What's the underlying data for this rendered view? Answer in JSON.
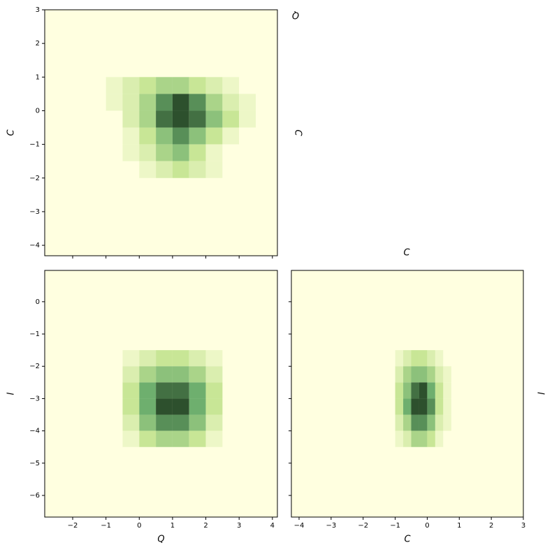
{
  "chart_data": [
    {
      "type": "hist2d",
      "xlabel": null,
      "ylabel": "C",
      "xlim": [
        -2.84,
        4.15
      ],
      "ylim": [
        -4.31,
        3
      ],
      "xticks": [
        {
          "value": -2,
          "label": "−2"
        },
        {
          "value": -1,
          "label": "−1"
        },
        0,
        1,
        2,
        3,
        4
      ],
      "yticks": [
        {
          "value": -4,
          "label": "−4"
        },
        {
          "value": -3,
          "label": "−3"
        },
        {
          "value": -2,
          "label": "−2"
        },
        {
          "value": -1,
          "label": "−1"
        },
        0,
        1,
        2,
        3
      ],
      "show_xtick_labels": false,
      "show_ytick_labels": true,
      "xbins": [
        -1,
        -0.5,
        0,
        0.5,
        1,
        1.5,
        2,
        2.5,
        3,
        3.5
      ],
      "ybins": [
        1,
        0.5,
        0,
        -0.5,
        -1,
        -1.5,
        -2
      ],
      "counts": [
        [
          1,
          2,
          3,
          4,
          4,
          3,
          2,
          1,
          0
        ],
        [
          1,
          2,
          4,
          7,
          9,
          7,
          4,
          2,
          1
        ],
        [
          0,
          2,
          4,
          8,
          9,
          8,
          5,
          3,
          1
        ],
        [
          0,
          1,
          3,
          5,
          7,
          5,
          3,
          1,
          0
        ],
        [
          0,
          1,
          2,
          4,
          5,
          3,
          1,
          0,
          0
        ],
        [
          0,
          0,
          1,
          2,
          3,
          2,
          1,
          0,
          0
        ]
      ]
    },
    {
      "type": "hist2d",
      "xlabel": "Q",
      "ylabel": "I",
      "xlim": [
        -2.84,
        4.15
      ],
      "ylim": [
        -6.67,
        0.97
      ],
      "xticks": [
        {
          "value": -2,
          "label": "−2"
        },
        {
          "value": -1,
          "label": "−1"
        },
        0,
        1,
        2,
        3,
        4
      ],
      "yticks": [
        {
          "value": -6,
          "label": "−6"
        },
        {
          "value": -5,
          "label": "−5"
        },
        {
          "value": -4,
          "label": "−4"
        },
        {
          "value": -3,
          "label": "−3"
        },
        {
          "value": -2,
          "label": "−2"
        },
        {
          "value": -1,
          "label": "−1"
        },
        0
      ],
      "show_xtick_labels": true,
      "show_ytick_labels": true,
      "xbins": [
        -0.5,
        0,
        0.5,
        1,
        1.5,
        2,
        2.5
      ],
      "ybins": [
        -1.5,
        -2,
        -2.5,
        -3,
        -3.5,
        -4,
        -4.5
      ],
      "counts": [
        [
          1,
          2,
          3,
          3,
          2,
          1
        ],
        [
          2,
          4,
          5,
          5,
          4,
          2
        ],
        [
          3,
          6,
          8,
          8,
          6,
          3
        ],
        [
          3,
          6,
          9,
          9,
          6,
          3
        ],
        [
          2,
          5,
          7,
          7,
          5,
          2
        ],
        [
          1,
          3,
          4,
          4,
          3,
          1
        ]
      ]
    },
    {
      "type": "hist2d",
      "xlabel": "C",
      "ylabel": null,
      "xlim": [
        -4.24,
        3
      ],
      "ylim": [
        -6.67,
        0.97
      ],
      "xticks": [
        {
          "value": -4,
          "label": "−4"
        },
        {
          "value": -3,
          "label": "−3"
        },
        {
          "value": -2,
          "label": "−2"
        },
        {
          "value": -1,
          "label": "−1"
        },
        0,
        1,
        2,
        3
      ],
      "yticks": [
        {
          "value": -6,
          "label": "−6"
        },
        {
          "value": -5,
          "label": "−5"
        },
        {
          "value": -4,
          "label": "−4"
        },
        {
          "value": -3,
          "label": "−3"
        },
        {
          "value": -2,
          "label": "−2"
        },
        {
          "value": -1,
          "label": "−1"
        },
        0
      ],
      "show_xtick_labels": true,
      "show_ytick_labels": false,
      "xbins": [
        -1,
        -0.75,
        -0.5,
        -0.25,
        0,
        0.25,
        0.5,
        0.75
      ],
      "ybins": [
        -1.5,
        -2,
        -2.5,
        -3,
        -3.5,
        -4,
        -4.5
      ],
      "counts": [
        [
          1,
          2,
          3,
          3,
          2,
          1,
          0
        ],
        [
          2,
          4,
          5,
          5,
          4,
          2,
          1
        ],
        [
          3,
          5,
          8,
          9,
          6,
          3,
          1
        ],
        [
          3,
          6,
          9,
          9,
          7,
          3,
          1
        ],
        [
          2,
          4,
          7,
          7,
          5,
          2,
          1
        ],
        [
          1,
          2,
          4,
          4,
          3,
          1,
          0
        ]
      ]
    }
  ],
  "annotations": [
    "Q",
    "C",
    "C",
    "I"
  ]
}
